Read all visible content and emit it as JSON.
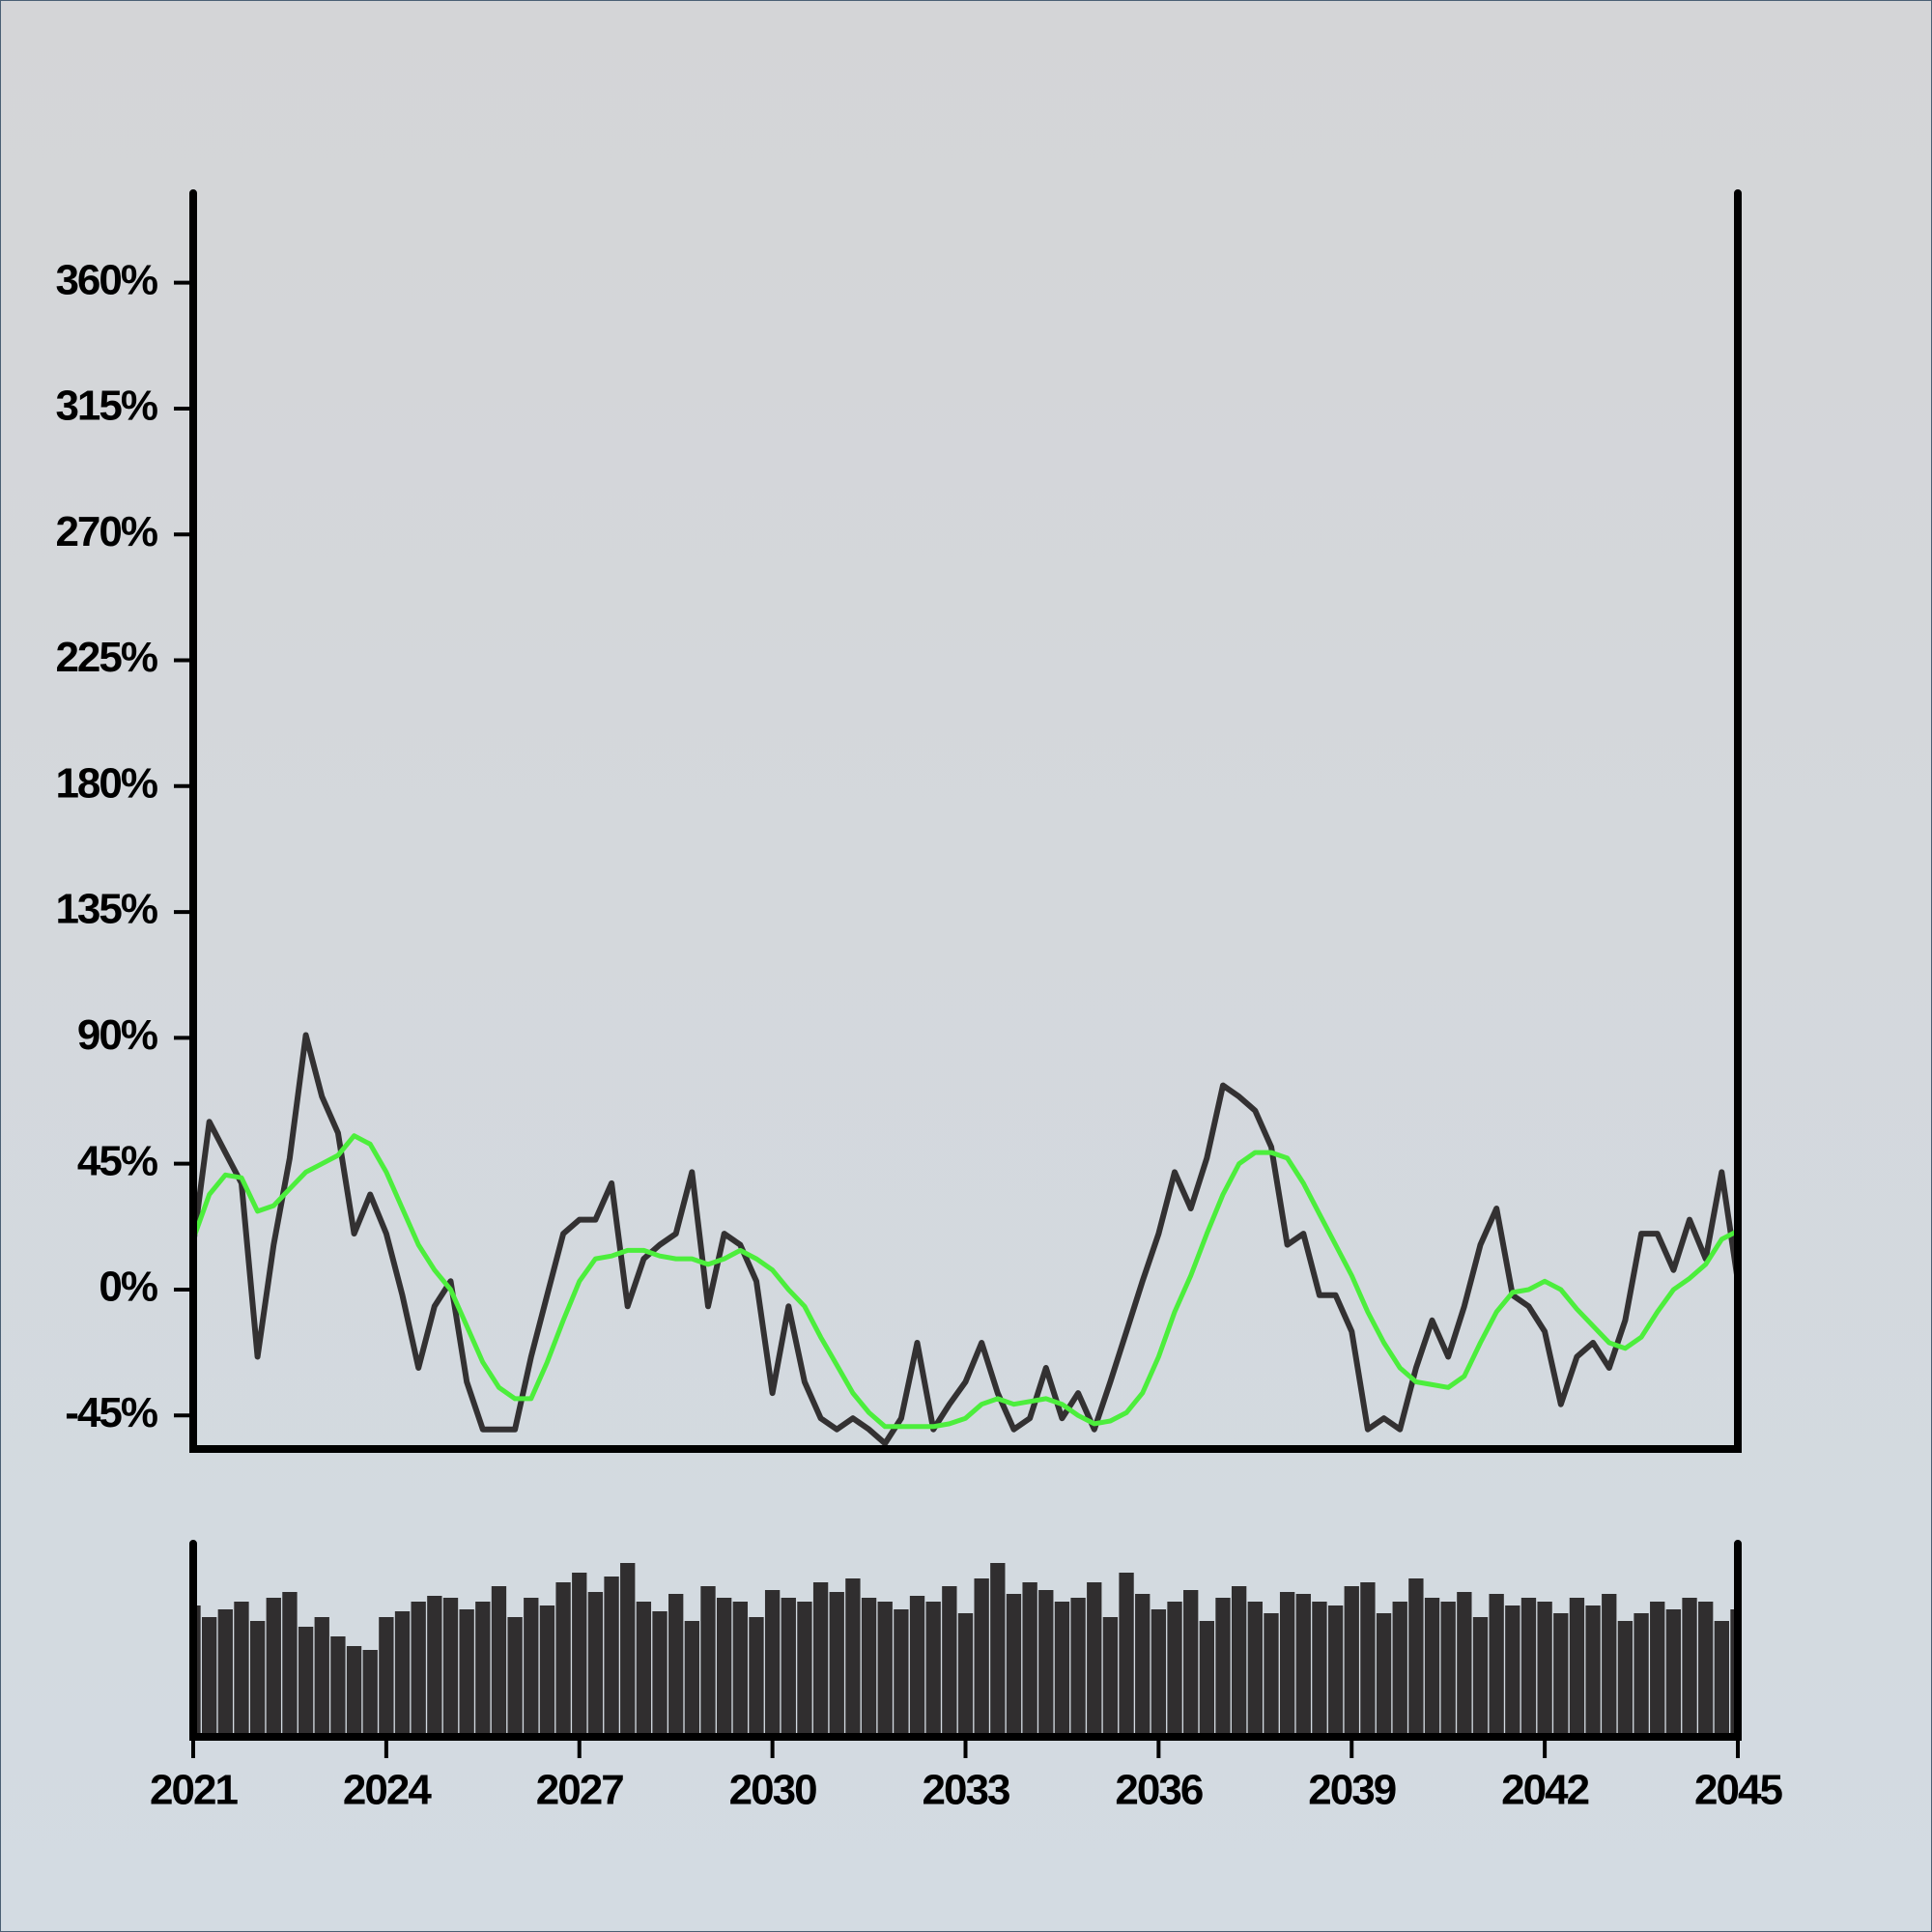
{
  "chart_data": [
    {
      "type": "line",
      "x": [
        2021,
        2021.25,
        2021.5,
        2021.75,
        2022,
        2022.25,
        2022.5,
        2022.75,
        2023,
        2023.25,
        2023.5,
        2023.75,
        2024,
        2024.25,
        2024.5,
        2024.75,
        2025,
        2025.25,
        2025.5,
        2025.75,
        2026,
        2026.25,
        2026.5,
        2026.75,
        2027,
        2027.25,
        2027.5,
        2027.75,
        2028,
        2028.25,
        2028.5,
        2028.75,
        2029,
        2029.25,
        2029.5,
        2029.75,
        2030,
        2030.25,
        2030.5,
        2030.75,
        2031,
        2031.25,
        2031.5,
        2031.75,
        2032,
        2032.25,
        2032.5,
        2032.75,
        2033,
        2033.25,
        2033.5,
        2033.75,
        2034,
        2034.25,
        2034.5,
        2034.75,
        2035,
        2035.25,
        2035.5,
        2035.75,
        2036,
        2036.25,
        2036.5,
        2036.75,
        2037,
        2037.25,
        2037.5,
        2037.75,
        2038,
        2038.25,
        2038.5,
        2038.75,
        2039,
        2039.25,
        2039.5,
        2039.75,
        2040,
        2040.25,
        2040.5,
        2040.75,
        2041,
        2041.25,
        2041.5,
        2041.75,
        2042,
        2042.25,
        2042.5,
        2042.75,
        2043,
        2043.25,
        2043.5,
        2043.75,
        2044,
        2044.25,
        2044.5,
        2044.75,
        2045
      ],
      "series": [
        {
          "color": "#333132",
          "values": [
            16,
            60,
            49,
            38,
            -24,
            16,
            47,
            91,
            69,
            56,
            20,
            34,
            20,
            -2,
            -28,
            -6,
            3,
            -33,
            -50,
            -50,
            -50,
            -24,
            -2,
            20,
            25,
            25,
            38,
            -6,
            11,
            16,
            20,
            42,
            -6,
            20,
            16,
            3,
            -37,
            -6,
            -33,
            -46,
            -50,
            -46,
            -50,
            -55,
            -46,
            -19,
            -50,
            -41,
            -33,
            -19,
            -37,
            -50,
            -46,
            -28,
            -46,
            -37,
            -50,
            -33,
            -15,
            3,
            20,
            42,
            29,
            47,
            73,
            69,
            64,
            51,
            16,
            20,
            -2,
            -2,
            -15,
            -50,
            -46,
            -50,
            -28,
            -11,
            -24,
            -6,
            16,
            29,
            -2,
            -6,
            -15,
            -41,
            -24,
            -19,
            -28,
            -11,
            20,
            20,
            7,
            25,
            11,
            42,
            3
          ]
        },
        {
          "color": "#4cee3c",
          "values": [
            18,
            34,
            41,
            40,
            28,
            30,
            36,
            42,
            45,
            48,
            55,
            52,
            42,
            29,
            16,
            7,
            0,
            -13,
            -26,
            -35,
            -39,
            -39,
            -26,
            -11,
            3,
            11,
            12,
            14,
            14,
            12,
            11,
            11,
            9,
            11,
            14,
            11,
            7,
            0,
            -6,
            -17,
            -27,
            -37,
            -44,
            -49,
            -49,
            -49,
            -49,
            -48,
            -46,
            -41,
            -39,
            -41,
            -40,
            -39,
            -41,
            -45,
            -48,
            -47,
            -44,
            -37,
            -24,
            -8,
            5,
            20,
            34,
            45,
            49,
            49,
            47,
            38,
            27,
            16,
            5,
            -8,
            -19,
            -28,
            -33,
            -34,
            -35,
            -31,
            -19,
            -8,
            -1,
            0,
            3,
            0,
            -7,
            -13,
            -19,
            -21,
            -17,
            -8,
            0,
            4,
            9,
            18,
            21
          ]
        }
      ],
      "xlim": [
        2021,
        2045
      ],
      "ylim": [
        -57,
        392
      ],
      "yticks": [
        {
          "value": -45,
          "label": "-45%"
        },
        {
          "value": 0,
          "label": "0%"
        },
        {
          "value": 45,
          "label": "45%"
        },
        {
          "value": 90,
          "label": "90%"
        },
        {
          "value": 135,
          "label": "135%"
        },
        {
          "value": 180,
          "label": "180%"
        },
        {
          "value": 225,
          "label": "225%"
        },
        {
          "value": 270,
          "label": "270%"
        },
        {
          "value": 315,
          "label": "315%"
        },
        {
          "value": 360,
          "label": "360%"
        }
      ]
    },
    {
      "type": "bar",
      "x": [
        2021,
        2021.25,
        2021.5,
        2021.75,
        2022,
        2022.25,
        2022.5,
        2022.75,
        2023,
        2023.25,
        2023.5,
        2023.75,
        2024,
        2024.25,
        2024.5,
        2024.75,
        2025,
        2025.25,
        2025.5,
        2025.75,
        2026,
        2026.25,
        2026.5,
        2026.75,
        2027,
        2027.25,
        2027.5,
        2027.75,
        2028,
        2028.25,
        2028.5,
        2028.75,
        2029,
        2029.25,
        2029.5,
        2029.75,
        2030,
        2030.25,
        2030.5,
        2030.75,
        2031,
        2031.25,
        2031.5,
        2031.75,
        2032,
        2032.25,
        2032.5,
        2032.75,
        2033,
        2033.25,
        2033.5,
        2033.75,
        2034,
        2034.25,
        2034.5,
        2034.75,
        2035,
        2035.25,
        2035.5,
        2035.75,
        2036,
        2036.25,
        2036.5,
        2036.75,
        2037,
        2037.25,
        2037.5,
        2037.75,
        2038,
        2038.25,
        2038.5,
        2038.75,
        2039,
        2039.25,
        2039.5,
        2039.75,
        2040,
        2040.25,
        2040.5,
        2040.75,
        2041,
        2041.25,
        2041.5,
        2041.75,
        2042,
        2042.25,
        2042.5,
        2042.75,
        2043,
        2043.25,
        2043.5,
        2043.75,
        2044,
        2044.25,
        2044.5,
        2044.75,
        2045
      ],
      "values": [
        68,
        62,
        66,
        70,
        60,
        72,
        75,
        57,
        62,
        52,
        47,
        45,
        62,
        65,
        70,
        73,
        72,
        66,
        70,
        78,
        62,
        72,
        68,
        80,
        85,
        75,
        83,
        90,
        70,
        65,
        74,
        60,
        78,
        72,
        70,
        62,
        76,
        72,
        70,
        80,
        75,
        82,
        72,
        70,
        66,
        73,
        70,
        78,
        64,
        82,
        90,
        74,
        80,
        76,
        70,
        72,
        80,
        62,
        85,
        74,
        66,
        70,
        76,
        60,
        72,
        78,
        70,
        64,
        75,
        74,
        70,
        68,
        78,
        80,
        64,
        70,
        82,
        72,
        70,
        75,
        62,
        74,
        68,
        72,
        70,
        64,
        72,
        68,
        74,
        60,
        64,
        70,
        66,
        72,
        70,
        60,
        66
      ],
      "color": "#302e2f",
      "xlim": [
        2021,
        2045
      ],
      "ylim": [
        0,
        100
      ],
      "xticks": [
        2021,
        2024,
        2027,
        2030,
        2033,
        2036,
        2039,
        2042,
        2045
      ]
    }
  ]
}
